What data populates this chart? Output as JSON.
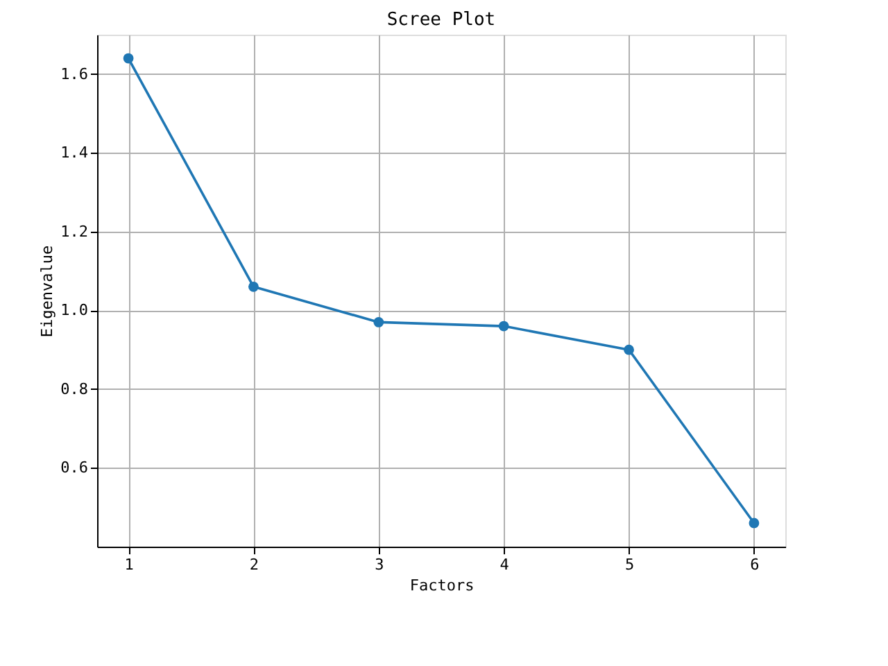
{
  "chart_data": {
    "type": "line",
    "title": "Scree Plot",
    "xlabel": "Factors",
    "ylabel": "Eigenvalue",
    "x": [
      1,
      2,
      3,
      4,
      5,
      6
    ],
    "series": [
      {
        "color": "#1f77b4",
        "values": [
          1.64,
          1.06,
          0.97,
          0.96,
          0.9,
          0.46
        ]
      }
    ],
    "xlim": [
      0.75,
      6.25
    ],
    "xticks": [
      1,
      2,
      3,
      4,
      5,
      6
    ],
    "ylim": [
      0.4,
      1.7
    ],
    "yticks": [
      0.6,
      0.8,
      {
        "value": 1.0,
        "label": "1.0"
      },
      1.2,
      1.4,
      1.6
    ],
    "grid": true,
    "marker": "circle",
    "line_style": "solid"
  }
}
